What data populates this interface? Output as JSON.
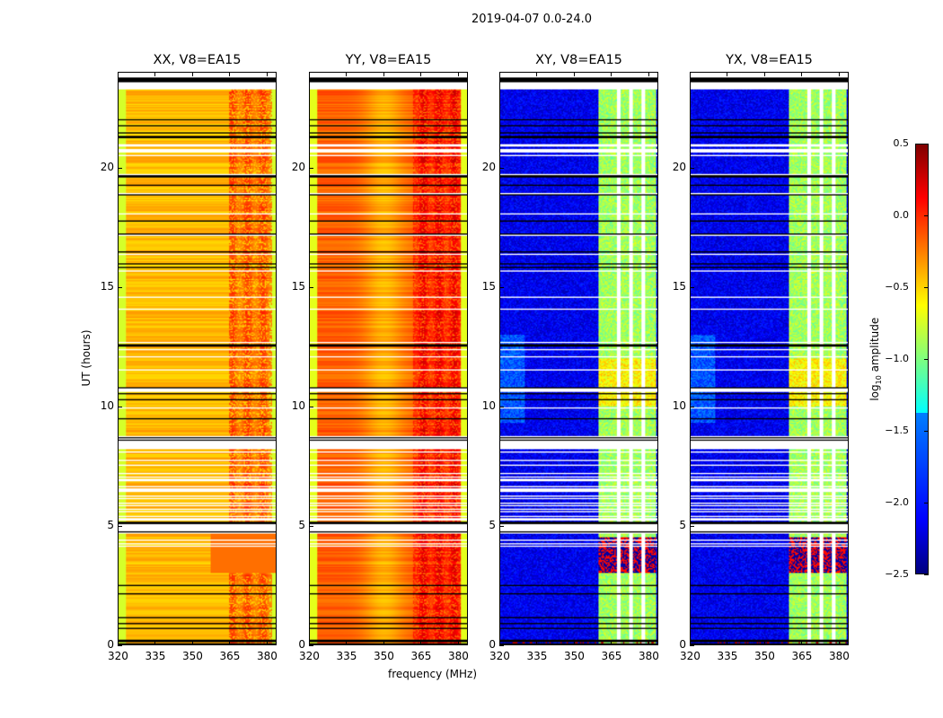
{
  "chart_data": {
    "type": "heatmap",
    "title": "2019-04-07 0.0-24.0",
    "xlabel": "frequency (MHz)",
    "ylabel": "UT (hours)",
    "xlim": [
      320,
      384
    ],
    "ylim": [
      0,
      24
    ],
    "xticks": [
      "320",
      "335",
      "350",
      "365",
      "380"
    ],
    "yticks": [
      "0",
      "5",
      "10",
      "15",
      "20"
    ],
    "xtick_values": [
      320,
      335,
      350,
      365,
      380
    ],
    "ytick_values": [
      0,
      5,
      10,
      15,
      20
    ],
    "panels": [
      {
        "title": "XX, V8=EA15",
        "base": -0.42,
        "edge": -0.75,
        "rfi_band": [
          365,
          382
        ],
        "rfi_level": -0.15
      },
      {
        "title": "YY, V8=EA15",
        "base": -0.3,
        "edge": -0.7,
        "rfi_band": [
          362,
          381
        ],
        "rfi_level": 0.1
      },
      {
        "title": "XY, V8=EA15",
        "base": -2.35,
        "edge": -2.35,
        "rfi_band": [
          360,
          383
        ],
        "rfi_level": -0.7
      },
      {
        "title": "YX, V8=EA15",
        "base": -2.35,
        "edge": -2.35,
        "rfi_band": [
          360,
          383
        ],
        "rfi_level": -0.7
      }
    ],
    "flagged_hours": [
      [
        8.3,
        8.75
      ],
      [
        20.65,
        20.8
      ],
      [
        23.3,
        24
      ],
      [
        4.65,
        5.15
      ]
    ],
    "colorbar": {
      "label": "log10 amplitude",
      "label_main": "log",
      "label_sub": "10",
      "label_rest": " amplitude",
      "range": [
        -2.5,
        0.5
      ],
      "ticks": [
        "0.5",
        "0.0",
        "−0.5",
        "−1.0",
        "−1.5",
        "−2.0",
        "−2.5"
      ],
      "tick_values": [
        0.5,
        0,
        -0.5,
        -1,
        -1.5,
        -2,
        -2.5
      ],
      "colormap": "jet"
    }
  }
}
